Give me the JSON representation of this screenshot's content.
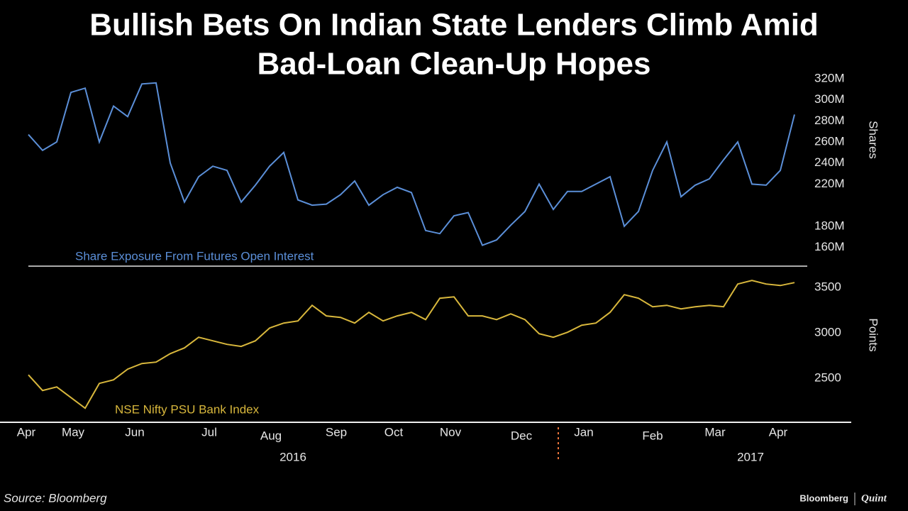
{
  "title": [
    "Bullish Bets On Indian State Lenders Climb Amid",
    "Bad-Loan Clean-Up Hopes"
  ],
  "source": "Source: Bloomberg",
  "logo": {
    "left": "Bloomberg",
    "right": "Quint"
  },
  "chart_data": [
    {
      "type": "line",
      "axis_label": "Shares",
      "series": [
        {
          "name": "Share Exposure From Futures Open Interest",
          "color": "#5b8fd8",
          "values": [
            267,
            252,
            260,
            307,
            311,
            260,
            294,
            284,
            315,
            316,
            240,
            203,
            227,
            237,
            233,
            203,
            219,
            237,
            250,
            205,
            200,
            201,
            210,
            223,
            200,
            210,
            217,
            212,
            176,
            173,
            190,
            193,
            162,
            167,
            181,
            194,
            220,
            196,
            213,
            213,
            220,
            227,
            180,
            194,
            233,
            260,
            208,
            219,
            225,
            243,
            260,
            220,
            219,
            233,
            286
          ]
        }
      ],
      "ylim": [
        157,
        330
      ],
      "yticks": [
        {
          "value": 160,
          "label": "160M"
        },
        {
          "value": 180,
          "label": "180M"
        },
        {
          "value": 220,
          "label": "220M"
        },
        {
          "value": 240,
          "label": "240M"
        },
        {
          "value": 260,
          "label": "260M"
        },
        {
          "value": 280,
          "label": "280M"
        },
        {
          "value": 300,
          "label": "300M"
        },
        {
          "value": 320,
          "label": "320M"
        }
      ]
    },
    {
      "type": "line",
      "axis_label": "Points",
      "series": [
        {
          "name": "NSE Nifty PSU Bank Index",
          "color": "#d8b73c",
          "values": [
            2539,
            2367,
            2406,
            2289,
            2172,
            2445,
            2484,
            2602,
            2664,
            2680,
            2773,
            2836,
            2953,
            2914,
            2875,
            2852,
            2914,
            3055,
            3109,
            3133,
            3305,
            3188,
            3172,
            3109,
            3227,
            3133,
            3188,
            3227,
            3148,
            3383,
            3398,
            3188,
            3188,
            3148,
            3211,
            3148,
            2992,
            2953,
            3008,
            3086,
            3109,
            3227,
            3422,
            3383,
            3289,
            3305,
            3266,
            3289,
            3305,
            3289,
            3539,
            3578,
            3539,
            3523,
            3555
          ]
        }
      ],
      "ylim": [
        2150,
        3650
      ],
      "yticks": [
        2500,
        3000,
        3500
      ],
      "months": [
        "Apr",
        "May",
        "Jun",
        "Jul",
        "Aug",
        "Sep",
        "Oct",
        "Nov",
        "Dec",
        "Jan",
        "Feb",
        "Mar",
        "Apr"
      ],
      "years": [
        "2016",
        "2017"
      ]
    }
  ]
}
